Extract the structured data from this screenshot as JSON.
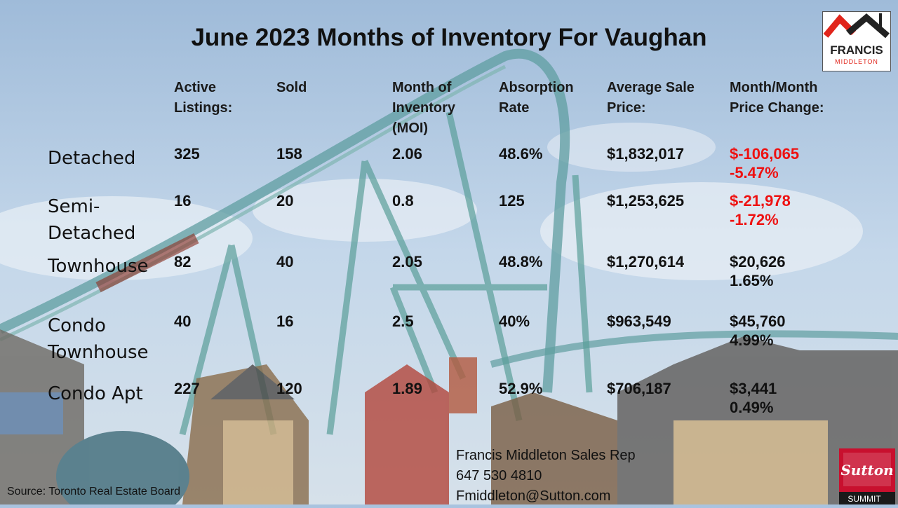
{
  "title": "June 2023 Months of Inventory For Vaughan",
  "columns": {
    "active": [
      "Active",
      "Listings:"
    ],
    "sold": [
      "Sold"
    ],
    "moi": [
      "Month of",
      "Inventory",
      "(MOI)"
    ],
    "absorption": [
      "Absorption",
      "Rate"
    ],
    "avg_price": [
      "Average Sale",
      "Price:"
    ],
    "price_change": [
      "Month/Month",
      "Price Change:"
    ]
  },
  "rows": [
    {
      "label": [
        "Detached"
      ],
      "active": "325",
      "sold": "158",
      "moi": "2.06",
      "absorption": "48.6%",
      "avg_price": "$1,832,017",
      "change_amount": "$-106,065",
      "change_pct": "-5.47%",
      "negative": true
    },
    {
      "label": [
        "Semi-",
        "Detached"
      ],
      "active": "16",
      "sold": "20",
      "moi": "0.8",
      "absorption": "125",
      "avg_price": "$1,253,625",
      "change_amount": "$-21,978",
      "change_pct": "-1.72%",
      "negative": true
    },
    {
      "label": [
        "Townhouse"
      ],
      "active": "82",
      "sold": "40",
      "moi": "2.05",
      "absorption": "48.8%",
      "avg_price": "$1,270,614",
      "change_amount": "$20,626",
      "change_pct": "1.65%",
      "negative": false
    },
    {
      "label": [
        "Condo",
        "Townhouse"
      ],
      "active": "40",
      "sold": "16",
      "moi": "2.5",
      "absorption": "40%",
      "avg_price": "$963,549",
      "change_amount": "$45,760",
      "change_pct": "4.99%",
      "negative": false
    },
    {
      "label": [
        "Condo Apt"
      ],
      "active": "227",
      "sold": "120",
      "moi": "1.89",
      "absorption": "52.9%",
      "avg_price": "$706,187",
      "change_amount": "$3,441",
      "change_pct": "0.49%",
      "negative": false
    }
  ],
  "source": "Source: Toronto Real Estate Board",
  "contact": {
    "name": "Francis Middleton Sales Rep",
    "phone": "647 530 4810",
    "email": "Fmiddleton@Sutton.com"
  },
  "logos": {
    "fm_line1": "FRANCIS",
    "fm_line2": "MIDDLETON",
    "sutton": "Sutton",
    "sutton_sub": "SUMMIT"
  },
  "colors": {
    "negative": "#ee1111",
    "sutton_red": "#c8102e",
    "fm_red": "#e1251b"
  }
}
